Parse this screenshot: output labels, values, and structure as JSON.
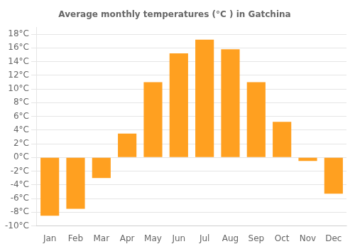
{
  "chart_data": {
    "type": "bar",
    "title": "Average monthly temperatures (°C ) in Gatchina",
    "categories": [
      "Jan",
      "Feb",
      "Mar",
      "Apr",
      "May",
      "Jun",
      "Jul",
      "Aug",
      "Sep",
      "Oct",
      "Nov",
      "Dec"
    ],
    "values": [
      -8.5,
      -7.5,
      -3.0,
      3.5,
      11.0,
      15.2,
      17.2,
      15.8,
      11.0,
      5.2,
      -0.5,
      -5.3
    ],
    "color": "#FFA020",
    "ylim": [
      -10,
      19
    ],
    "yticks": [
      {
        "value": -10,
        "label": "-10°C"
      },
      {
        "value": -8,
        "label": "-8°C"
      },
      {
        "value": -6,
        "label": "-6°C"
      },
      {
        "value": -4,
        "label": "-4°C"
      },
      {
        "value": -2,
        "label": "-2°C"
      },
      {
        "value": 0,
        "label": "0°C"
      },
      {
        "value": 2,
        "label": "2°C"
      },
      {
        "value": 4,
        "label": "4°C"
      },
      {
        "value": 6,
        "label": "6°C"
      },
      {
        "value": 8,
        "label": "8°C"
      },
      {
        "value": 10,
        "label": "10°C"
      },
      {
        "value": 12,
        "label": "12°C"
      },
      {
        "value": 14,
        "label": "14°C"
      },
      {
        "value": 16,
        "label": "16°C"
      },
      {
        "value": 18,
        "label": "18°C"
      }
    ],
    "grid": true
  }
}
